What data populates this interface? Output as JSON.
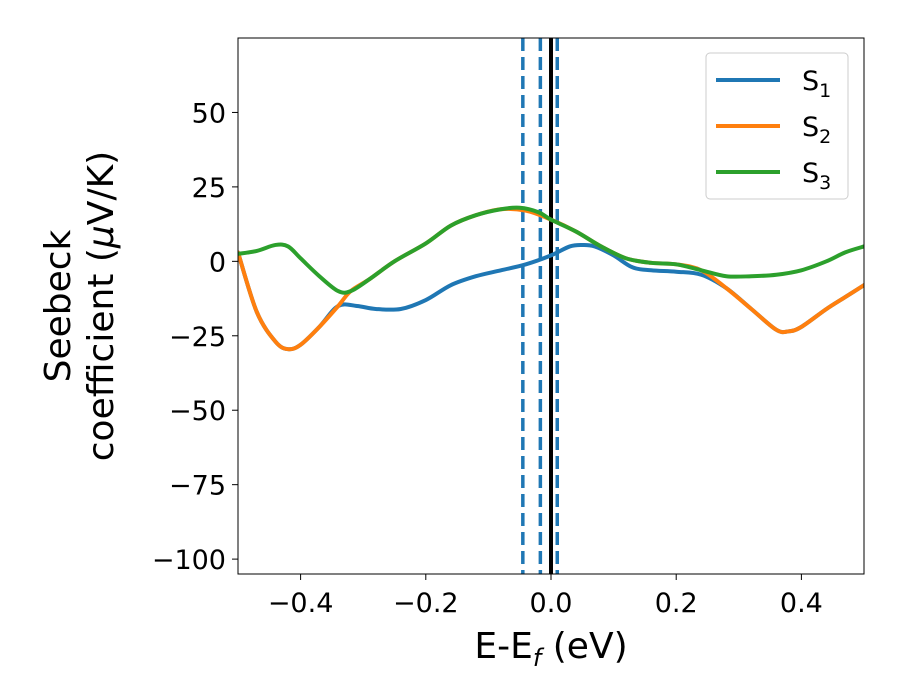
{
  "chart_data": {
    "type": "line",
    "title": "",
    "xlabel": {
      "base": "E-E",
      "sub": "f",
      "suffix": " (eV)"
    },
    "ylabel": {
      "line1": "Seebeck",
      "line2_prefix": "coefficient  (",
      "mu": "μ",
      "line2_suffix": "V/K)"
    },
    "xlim": [
      -0.5,
      0.5
    ],
    "ylim": [
      -105,
      75
    ],
    "xticks": [
      -0.4,
      -0.2,
      0.0,
      0.2,
      0.4
    ],
    "xtick_labels": [
      "−0.4",
      "−0.2",
      "0.0",
      "0.2",
      "0.4"
    ],
    "yticks": [
      50,
      25,
      0,
      -25,
      -50,
      -75,
      -100
    ],
    "ytick_labels": [
      "50",
      "25",
      "0",
      "−25",
      "−50",
      "−75",
      "−100"
    ],
    "grid": false,
    "legend_position": "top-right",
    "series": [
      {
        "name": "S1",
        "label_base": "S",
        "label_sub": "1",
        "color": "#1f77b4",
        "x": [
          -0.5,
          -0.47,
          -0.44,
          -0.42,
          -0.4,
          -0.37,
          -0.34,
          -0.31,
          -0.28,
          -0.24,
          -0.2,
          -0.16,
          -0.12,
          -0.08,
          -0.04,
          0.0,
          0.03,
          0.05,
          0.07,
          0.1,
          0.13,
          0.16,
          0.2,
          0.24,
          0.28,
          0.32,
          0.36,
          0.38,
          0.4,
          0.44,
          0.47,
          0.5
        ],
        "y": [
          3,
          -17,
          -27,
          -29.5,
          -28,
          -22,
          -15,
          -15,
          -16,
          -16,
          -13,
          -8,
          -5,
          -3,
          -1,
          2,
          5,
          5.5,
          5,
          2,
          -2,
          -3,
          -3.5,
          -4.5,
          -9,
          -16,
          -23,
          -23.5,
          -22,
          -16,
          -12,
          -8
        ]
      },
      {
        "name": "S2",
        "label_base": "S",
        "label_sub": "2",
        "color": "#ff7f0e",
        "x": [
          -0.5,
          -0.47,
          -0.44,
          -0.42,
          -0.4,
          -0.37,
          -0.34,
          -0.32,
          -0.29,
          -0.25,
          -0.2,
          -0.16,
          -0.12,
          -0.08,
          -0.04,
          0.0,
          0.04,
          0.08,
          0.12,
          0.16,
          0.2,
          0.24,
          0.28,
          0.32,
          0.36,
          0.38,
          0.4,
          0.44,
          0.47,
          0.5
        ],
        "y": [
          3,
          -17,
          -27,
          -29.5,
          -28,
          -22,
          -15,
          -10,
          -6,
          0,
          6,
          12,
          15.5,
          17.5,
          17,
          14,
          10,
          5,
          1,
          -0.5,
          -1,
          -3,
          -9,
          -16,
          -23,
          -23.5,
          -22,
          -16,
          -12,
          -8
        ]
      },
      {
        "name": "S3",
        "label_base": "S",
        "label_sub": "3",
        "color": "#2ca02c",
        "x": [
          -0.5,
          -0.47,
          -0.44,
          -0.42,
          -0.4,
          -0.37,
          -0.34,
          -0.32,
          -0.29,
          -0.25,
          -0.2,
          -0.16,
          -0.12,
          -0.08,
          -0.05,
          -0.02,
          0.0,
          0.04,
          0.08,
          0.12,
          0.16,
          0.2,
          0.24,
          0.28,
          0.32,
          0.36,
          0.4,
          0.44,
          0.47,
          0.5
        ],
        "y": [
          2.5,
          3.5,
          5.5,
          5,
          1,
          -5,
          -10,
          -10,
          -6,
          0,
          6,
          12,
          15.5,
          17.5,
          18,
          16.5,
          14,
          10,
          5,
          1,
          -0.5,
          -1,
          -3,
          -5,
          -5,
          -4.5,
          -3,
          0,
          3,
          5
        ]
      }
    ],
    "vertical_lines": [
      {
        "x": -0.045,
        "style": "dashed",
        "color": "#1f77b4"
      },
      {
        "x": -0.017,
        "style": "dashed",
        "color": "#1f77b4"
      },
      {
        "x": 0.01,
        "style": "dashed",
        "color": "#1f77b4"
      },
      {
        "x": 0.0,
        "style": "solid",
        "color": "#000000"
      }
    ]
  }
}
